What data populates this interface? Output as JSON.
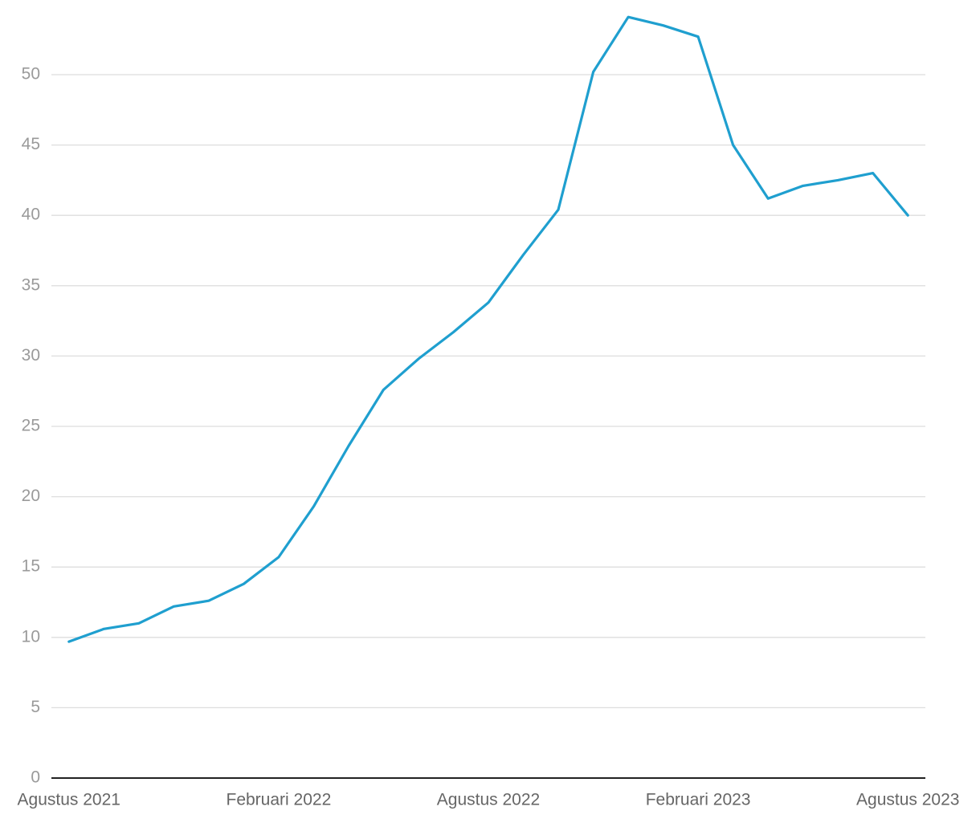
{
  "chart_data": {
    "type": "line",
    "categories": [
      "Agustus 2021",
      null,
      null,
      null,
      null,
      null,
      "Februari 2022",
      null,
      null,
      null,
      null,
      null,
      "Agustus 2022",
      null,
      null,
      null,
      null,
      null,
      "Februari 2023",
      null,
      null,
      null,
      null,
      null,
      "Agustus 2023"
    ],
    "series": [
      {
        "color": "#1f9fcf",
        "values": [
          9.7,
          10.6,
          11.0,
          12.2,
          12.6,
          13.8,
          15.7,
          19.3,
          23.6,
          27.6,
          29.8,
          31.7,
          33.8,
          37.2,
          40.4,
          50.2,
          54.1,
          53.5,
          52.7,
          45.0,
          41.2,
          42.1,
          42.5,
          43.0,
          40.0
        ]
      }
    ],
    "ylim": [
      0,
      55
    ],
    "yticks": [
      0,
      5,
      10,
      15,
      20,
      25,
      30,
      35,
      40,
      45,
      50
    ],
    "grid": true
  }
}
